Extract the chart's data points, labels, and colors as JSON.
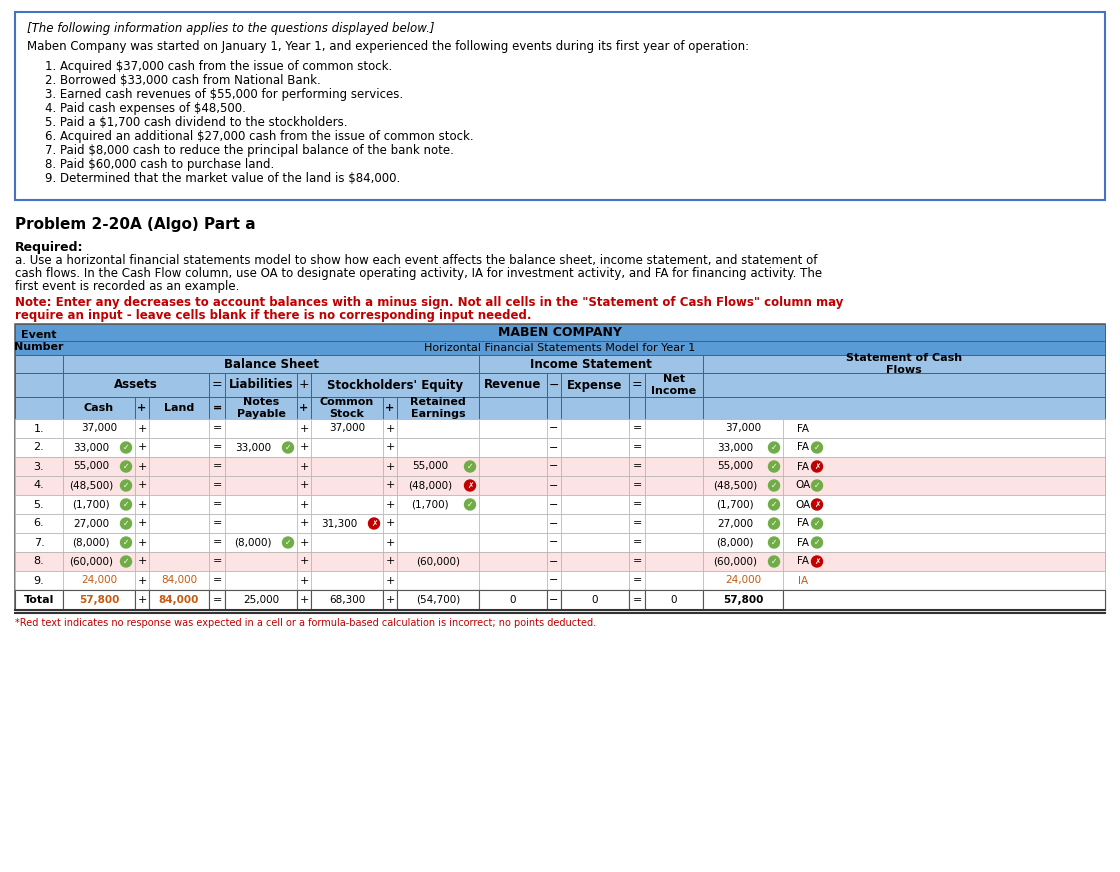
{
  "title_box_text": "[The following information applies to the questions displayed below.]",
  "intro_text": "Maben Company was started on January 1, Year 1, and experienced the following events during its first year of operation:",
  "events": [
    "1. Acquired $37,000 cash from the issue of common stock.",
    "2. Borrowed $33,000 cash from National Bank.",
    "3. Earned cash revenues of $55,000 for performing services.",
    "4. Paid cash expenses of $48,500.",
    "5. Paid a $1,700 cash dividend to the stockholders.",
    "6. Acquired an additional $27,000 cash from the issue of common stock.",
    "7. Paid $8,000 cash to reduce the principal balance of the bank note.",
    "8. Paid $60,000 cash to purchase land.",
    "9. Determined that the market value of the land is $84,000."
  ],
  "problem_label": "Problem 2-20A (Algo) Part a",
  "required_label": "Required:",
  "required_a": "a. Use a horizontal financial statements model to show how each event affects the balance sheet, income statement, and statement of",
  "required_b": "cash flows. In the Cash Flow column, use OA to designate operating activity, IA for investment activity, and FA for financing activity. The",
  "required_c": "first event is recorded as an example.",
  "note_line1": "Note: Enter any decreases to account balances with a minus sign. Not all cells in the \"Statement of Cash Flows\" column may",
  "note_line2": "require an input - leave cells blank if there is no corresponding input needed.",
  "table_title": "MABEN COMPANY",
  "table_subtitle": "Horizontal Financial Statements Model for Year 1",
  "header_bg": "#5b9bd5",
  "subheader_bg": "#9dc3e6",
  "red_text_color": "#c00000",
  "orange_text_color": "#c55a11",
  "green_circle_color": "#70ad47",
  "red_circle_color": "#c00000",
  "table_data": [
    {
      "event": "1.",
      "cash": "37,000",
      "cash_color": "black",
      "cash_check": null,
      "land": "",
      "land_color": "black",
      "land_check": null,
      "notes_pay": "",
      "notes_pay_color": "black",
      "notes_pay_check": null,
      "common": "37,000",
      "common_color": "black",
      "common_check": null,
      "retained": "",
      "retained_color": "black",
      "retained_check": null,
      "revenue": "",
      "revenue_color": "black",
      "revenue_check": null,
      "expense": "",
      "expense_color": "black",
      "expense_check": null,
      "net_income": "",
      "net_income_color": "black",
      "net_income_check": null,
      "cf_amount": "37,000",
      "cf_amount_color": "black",
      "cf_amount_check": null,
      "cf_type": "FA",
      "cf_type_color": "black",
      "cf_check": null,
      "row_bg": "#ffffff"
    },
    {
      "event": "2.",
      "cash": "33,000",
      "cash_color": "black",
      "cash_check": "green",
      "land": "",
      "land_color": "black",
      "land_check": null,
      "notes_pay": "33,000",
      "notes_pay_color": "black",
      "notes_pay_check": "green",
      "common": "",
      "common_color": "black",
      "common_check": null,
      "retained": "",
      "retained_color": "black",
      "retained_check": null,
      "revenue": "",
      "revenue_color": "black",
      "revenue_check": null,
      "expense": "",
      "expense_color": "black",
      "expense_check": null,
      "net_income": "",
      "net_income_color": "black",
      "net_income_check": null,
      "cf_amount": "33,000",
      "cf_amount_color": "black",
      "cf_amount_check": "green",
      "cf_type": "FA",
      "cf_type_color": "black",
      "cf_check": "green",
      "row_bg": "#ffffff"
    },
    {
      "event": "3.",
      "cash": "55,000",
      "cash_color": "black",
      "cash_check": "green",
      "land": "",
      "land_color": "black",
      "land_check": null,
      "notes_pay": "",
      "notes_pay_color": "black",
      "notes_pay_check": null,
      "common": "",
      "common_color": "black",
      "common_check": null,
      "retained": "55,000",
      "retained_color": "black",
      "retained_check": "green",
      "revenue": "",
      "revenue_color": "black",
      "revenue_check": "red_x",
      "expense": "",
      "expense_color": "black",
      "expense_check": null,
      "net_income": "",
      "net_income_color": "black",
      "net_income_check": "red_x",
      "cf_amount": "55,000",
      "cf_amount_color": "black",
      "cf_amount_check": "green",
      "cf_type": "FA",
      "cf_type_color": "black",
      "cf_check": "red_x",
      "row_bg": "#fce4e4"
    },
    {
      "event": "4.",
      "cash": "(48,500)",
      "cash_color": "black",
      "cash_check": "green",
      "land": "",
      "land_color": "black",
      "land_check": null,
      "notes_pay": "",
      "notes_pay_color": "black",
      "notes_pay_check": null,
      "common": "",
      "common_color": "black",
      "common_check": null,
      "retained": "(48,000)",
      "retained_color": "black",
      "retained_check": "red_x",
      "revenue": "",
      "revenue_color": "black",
      "revenue_check": null,
      "expense": "",
      "expense_color": "black",
      "expense_check": "red_x",
      "net_income": "",
      "net_income_color": "black",
      "net_income_check": "red_x",
      "cf_amount": "(48,500)",
      "cf_amount_color": "black",
      "cf_amount_check": "green",
      "cf_type": "OA",
      "cf_type_color": "black",
      "cf_check": "green",
      "row_bg": "#fce4e4"
    },
    {
      "event": "5.",
      "cash": "(1,700)",
      "cash_color": "black",
      "cash_check": "green",
      "land": "",
      "land_color": "black",
      "land_check": null,
      "notes_pay": "",
      "notes_pay_color": "black",
      "notes_pay_check": null,
      "common": "",
      "common_color": "black",
      "common_check": null,
      "retained": "(1,700)",
      "retained_color": "black",
      "retained_check": "green",
      "revenue": "",
      "revenue_color": "black",
      "revenue_check": null,
      "expense": "",
      "expense_color": "black",
      "expense_check": null,
      "net_income": "",
      "net_income_color": "black",
      "net_income_check": null,
      "cf_amount": "(1,700)",
      "cf_amount_color": "black",
      "cf_amount_check": "green",
      "cf_type": "OA",
      "cf_type_color": "black",
      "cf_check": "red_x",
      "row_bg": "#ffffff"
    },
    {
      "event": "6.",
      "cash": "27,000",
      "cash_color": "black",
      "cash_check": "green",
      "land": "",
      "land_color": "black",
      "land_check": null,
      "notes_pay": "",
      "notes_pay_color": "black",
      "notes_pay_check": null,
      "common": "31,300",
      "common_color": "black",
      "common_check": "red_x",
      "retained": "",
      "retained_color": "black",
      "retained_check": null,
      "revenue": "",
      "revenue_color": "black",
      "revenue_check": null,
      "expense": "",
      "expense_color": "black",
      "expense_check": null,
      "net_income": "",
      "net_income_color": "black",
      "net_income_check": null,
      "cf_amount": "27,000",
      "cf_amount_color": "black",
      "cf_amount_check": "green",
      "cf_type": "FA",
      "cf_type_color": "black",
      "cf_check": "green",
      "row_bg": "#ffffff"
    },
    {
      "event": "7.",
      "cash": "(8,000)",
      "cash_color": "black",
      "cash_check": "green",
      "land": "",
      "land_color": "black",
      "land_check": null,
      "notes_pay": "(8,000)",
      "notes_pay_color": "black",
      "notes_pay_check": "green",
      "common": "",
      "common_color": "black",
      "common_check": null,
      "retained": "",
      "retained_color": "black",
      "retained_check": null,
      "revenue": "",
      "revenue_color": "black",
      "revenue_check": null,
      "expense": "",
      "expense_color": "black",
      "expense_check": null,
      "net_income": "",
      "net_income_color": "black",
      "net_income_check": null,
      "cf_amount": "(8,000)",
      "cf_amount_color": "black",
      "cf_amount_check": "green",
      "cf_type": "FA",
      "cf_type_color": "black",
      "cf_check": "green",
      "row_bg": "#ffffff"
    },
    {
      "event": "8.",
      "cash": "(60,000)",
      "cash_color": "black",
      "cash_check": "green",
      "land": "",
      "land_color": "black",
      "land_check": "red_x",
      "notes_pay": "",
      "notes_pay_color": "black",
      "notes_pay_check": null,
      "common": "",
      "common_color": "black",
      "common_check": null,
      "retained": "(60,000)",
      "retained_color": "black",
      "retained_check": null,
      "revenue": "",
      "revenue_color": "black",
      "revenue_check": null,
      "expense": "",
      "expense_color": "black",
      "expense_check": null,
      "net_income": "",
      "net_income_color": "black",
      "net_income_check": null,
      "cf_amount": "(60,000)",
      "cf_amount_color": "black",
      "cf_amount_check": "green",
      "cf_type": "FA",
      "cf_type_color": "black",
      "cf_check": "red_x",
      "row_bg": "#fce4e4"
    },
    {
      "event": "9.",
      "cash": "24,000",
      "cash_color": "#c55a11",
      "cash_check": null,
      "land": "84,000",
      "land_color": "#c55a11",
      "land_check": null,
      "notes_pay": "",
      "notes_pay_color": "black",
      "notes_pay_check": null,
      "common": "",
      "common_color": "black",
      "common_check": null,
      "retained": "",
      "retained_color": "black",
      "retained_check": null,
      "revenue": "",
      "revenue_color": "black",
      "revenue_check": null,
      "expense": "",
      "expense_color": "black",
      "expense_check": null,
      "net_income": "",
      "net_income_color": "black",
      "net_income_check": null,
      "cf_amount": "24,000",
      "cf_amount_color": "#c55a11",
      "cf_amount_check": null,
      "cf_type": "IA",
      "cf_type_color": "#c55a11",
      "cf_check": null,
      "row_bg": "#ffffff"
    }
  ],
  "total_row": {
    "cash": "57,800",
    "cash_color": "#c55a11",
    "land": "84,000",
    "land_color": "#c55a11",
    "notes_pay": "25,000",
    "notes_pay_color": "black",
    "common": "68,300",
    "common_color": "black",
    "retained": "(54,700)",
    "retained_color": "black",
    "revenue": "0",
    "revenue_color": "black",
    "expense": "0",
    "expense_color": "black",
    "net_income": "0",
    "net_income_color": "black",
    "cf_amount": "57,800",
    "cf_amount_color": "black"
  },
  "footnote": "*Red text indicates no response was expected in a cell or a formula-based calculation is incorrect; no points deducted."
}
